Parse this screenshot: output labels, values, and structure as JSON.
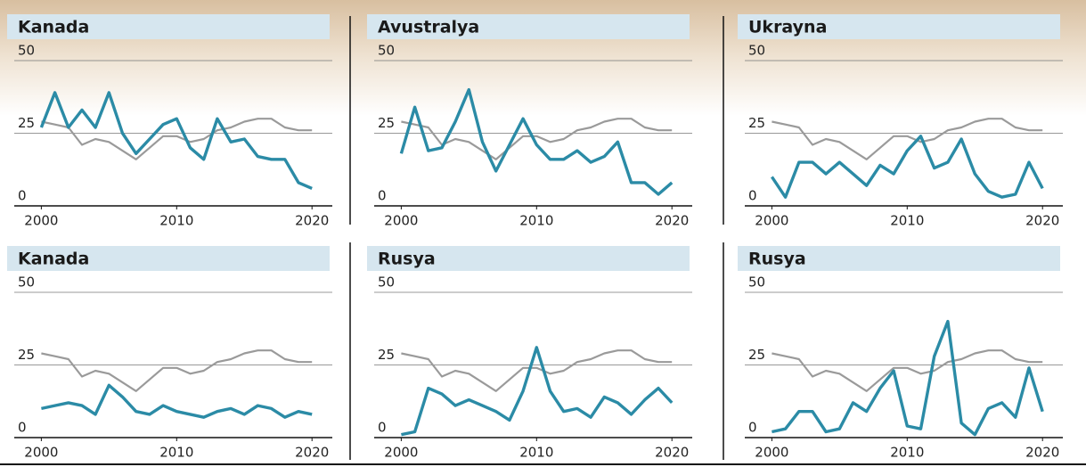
{
  "chart_data": [
    {
      "type": "line",
      "title": "Kanada",
      "x": [
        2000,
        2001,
        2002,
        2003,
        2004,
        2005,
        2006,
        2007,
        2008,
        2009,
        2010,
        2011,
        2012,
        2013,
        2014,
        2015,
        2016,
        2017,
        2018,
        2019,
        2020
      ],
      "series": [
        {
          "color": "#9a9a9a",
          "values": [
            29,
            28,
            27,
            21,
            23,
            22,
            19,
            16,
            20,
            24,
            24,
            22,
            23,
            26,
            27,
            29,
            30,
            30,
            27,
            26,
            26
          ]
        },
        {
          "color": "#2b8ba6",
          "values": [
            27,
            39,
            27,
            33,
            27,
            39,
            25,
            18,
            23,
            28,
            30,
            20,
            16,
            30,
            22,
            23,
            17,
            16,
            16,
            8,
            6
          ]
        }
      ],
      "xlim": [
        1998,
        2021.5
      ],
      "ylim": [
        0,
        50
      ],
      "xticks": [
        2000,
        2010,
        2020
      ],
      "yticks": [
        0,
        25,
        50
      ]
    },
    {
      "type": "line",
      "title": "Avustralya",
      "x": [
        2000,
        2001,
        2002,
        2003,
        2004,
        2005,
        2006,
        2007,
        2008,
        2009,
        2010,
        2011,
        2012,
        2013,
        2014,
        2015,
        2016,
        2017,
        2018,
        2019,
        2020
      ],
      "series": [
        {
          "color": "#9a9a9a",
          "values": [
            29,
            28,
            27,
            21,
            23,
            22,
            19,
            16,
            20,
            24,
            24,
            22,
            23,
            26,
            27,
            29,
            30,
            30,
            27,
            26,
            26
          ]
        },
        {
          "color": "#2b8ba6",
          "values": [
            18,
            34,
            19,
            20,
            29,
            40,
            22,
            12,
            21,
            30,
            21,
            16,
            16,
            19,
            15,
            17,
            22,
            8,
            8,
            4,
            8
          ]
        }
      ],
      "xlim": [
        1998,
        2021.5
      ],
      "ylim": [
        0,
        50
      ],
      "xticks": [
        2000,
        2010,
        2020
      ],
      "yticks": [
        0,
        25,
        50
      ]
    },
    {
      "type": "line",
      "title": "Ukrayna",
      "x": [
        2000,
        2001,
        2002,
        2003,
        2004,
        2005,
        2006,
        2007,
        2008,
        2009,
        2010,
        2011,
        2012,
        2013,
        2014,
        2015,
        2016,
        2017,
        2018,
        2019,
        2020
      ],
      "series": [
        {
          "color": "#9a9a9a",
          "values": [
            29,
            28,
            27,
            21,
            23,
            22,
            19,
            16,
            20,
            24,
            24,
            22,
            23,
            26,
            27,
            29,
            30,
            30,
            27,
            26,
            26
          ]
        },
        {
          "color": "#2b8ba6",
          "values": [
            10,
            3,
            15,
            15,
            11,
            15,
            11,
            7,
            14,
            11,
            19,
            24,
            13,
            15,
            23,
            11,
            5,
            3,
            4,
            15,
            6
          ]
        }
      ],
      "xlim": [
        1998,
        2021.5
      ],
      "ylim": [
        0,
        50
      ],
      "xticks": [
        2000,
        2010,
        2020
      ],
      "yticks": [
        0,
        25,
        50
      ]
    },
    {
      "type": "line",
      "title": "Kanada",
      "x": [
        2000,
        2001,
        2002,
        2003,
        2004,
        2005,
        2006,
        2007,
        2008,
        2009,
        2010,
        2011,
        2012,
        2013,
        2014,
        2015,
        2016,
        2017,
        2018,
        2019,
        2020
      ],
      "series": [
        {
          "color": "#9a9a9a",
          "values": [
            29,
            28,
            27,
            21,
            23,
            22,
            19,
            16,
            20,
            24,
            24,
            22,
            23,
            26,
            27,
            29,
            30,
            30,
            27,
            26,
            26
          ]
        },
        {
          "color": "#2b8ba6",
          "values": [
            10,
            11,
            12,
            11,
            8,
            18,
            14,
            9,
            8,
            11,
            9,
            8,
            7,
            9,
            10,
            8,
            11,
            10,
            7,
            9,
            8
          ]
        }
      ],
      "xlim": [
        1998,
        2021.5
      ],
      "ylim": [
        0,
        50
      ],
      "xticks": [
        2000,
        2010,
        2020
      ],
      "yticks": [
        0,
        25,
        50
      ]
    },
    {
      "type": "line",
      "title": "Rusya",
      "x": [
        2000,
        2001,
        2002,
        2003,
        2004,
        2005,
        2006,
        2007,
        2008,
        2009,
        2010,
        2011,
        2012,
        2013,
        2014,
        2015,
        2016,
        2017,
        2018,
        2019,
        2020
      ],
      "series": [
        {
          "color": "#9a9a9a",
          "values": [
            29,
            28,
            27,
            21,
            23,
            22,
            19,
            16,
            20,
            24,
            24,
            22,
            23,
            26,
            27,
            29,
            30,
            30,
            27,
            26,
            26
          ]
        },
        {
          "color": "#2b8ba6",
          "values": [
            1,
            2,
            17,
            15,
            11,
            13,
            11,
            9,
            6,
            16,
            31,
            16,
            9,
            10,
            7,
            14,
            12,
            8,
            13,
            17,
            12
          ]
        }
      ],
      "xlim": [
        1998,
        2021.5
      ],
      "ylim": [
        0,
        50
      ],
      "xticks": [
        2000,
        2010,
        2020
      ],
      "yticks": [
        0,
        25,
        50
      ]
    },
    {
      "type": "line",
      "title": "Rusya",
      "x": [
        2000,
        2001,
        2002,
        2003,
        2004,
        2005,
        2006,
        2007,
        2008,
        2009,
        2010,
        2011,
        2012,
        2013,
        2014,
        2015,
        2016,
        2017,
        2018,
        2019,
        2020
      ],
      "series": [
        {
          "color": "#9a9a9a",
          "values": [
            29,
            28,
            27,
            21,
            23,
            22,
            19,
            16,
            20,
            24,
            24,
            22,
            23,
            26,
            27,
            29,
            30,
            30,
            27,
            26,
            26
          ]
        },
        {
          "color": "#2b8ba6",
          "values": [
            2,
            3,
            9,
            9,
            2,
            3,
            12,
            9,
            17,
            23,
            4,
            3,
            28,
            40,
            5,
            1,
            10,
            12,
            7,
            24,
            9
          ]
        }
      ],
      "xlim": [
        1998,
        2021.5
      ],
      "ylim": [
        0,
        50
      ],
      "xticks": [
        2000,
        2010,
        2020
      ],
      "yticks": [
        0,
        25,
        50
      ]
    }
  ]
}
